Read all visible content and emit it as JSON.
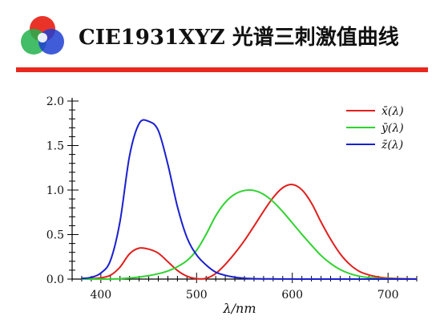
{
  "header": {
    "title": "CIE1931XYZ 光谱三刺激值曲线",
    "logo": {
      "name": "rgb-color-circles-icon",
      "colors": [
        "#e8281e",
        "#22b14c",
        "#1f3fd1"
      ]
    },
    "rule_color": "#e8281e"
  },
  "chart_data": {
    "type": "line",
    "xlabel": "λ/nm",
    "ylabel": "",
    "xlim": [
      370,
      730
    ],
    "ylim": [
      0,
      2.0
    ],
    "xticks": [
      400,
      500,
      600,
      700
    ],
    "yticks": [
      0.0,
      0.5,
      1.0,
      1.5,
      2.0
    ],
    "ytick_labels": [
      "0.0",
      "0.5",
      "1.0",
      "1.5",
      "2.0"
    ],
    "legend_position": "top-right",
    "x": [
      380,
      390,
      400,
      410,
      420,
      430,
      440,
      450,
      460,
      470,
      480,
      490,
      500,
      510,
      520,
      530,
      540,
      550,
      560,
      570,
      580,
      590,
      600,
      610,
      620,
      630,
      640,
      650,
      660,
      670,
      680,
      690,
      700,
      710,
      720,
      730
    ],
    "series": [
      {
        "name": "x̄(λ)",
        "color": "#e0201c",
        "values": [
          0.001,
          0.004,
          0.014,
          0.043,
          0.134,
          0.284,
          0.348,
          0.336,
          0.291,
          0.195,
          0.096,
          0.032,
          0.005,
          0.009,
          0.063,
          0.165,
          0.29,
          0.433,
          0.595,
          0.762,
          0.916,
          1.026,
          1.062,
          1.003,
          0.854,
          0.642,
          0.448,
          0.284,
          0.165,
          0.087,
          0.047,
          0.023,
          0.011,
          0.006,
          0.003,
          0.001
        ]
      },
      {
        "name": "ȳ(λ)",
        "color": "#2fd32f",
        "values": [
          0.0,
          0.0,
          0.0,
          0.001,
          0.004,
          0.012,
          0.023,
          0.038,
          0.06,
          0.091,
          0.139,
          0.208,
          0.323,
          0.503,
          0.71,
          0.862,
          0.954,
          0.995,
          0.995,
          0.952,
          0.87,
          0.757,
          0.631,
          0.503,
          0.381,
          0.265,
          0.175,
          0.107,
          0.061,
          0.032,
          0.017,
          0.008,
          0.004,
          0.002,
          0.001,
          0.0
        ]
      },
      {
        "name": "z̄(λ)",
        "color": "#1a1fcf",
        "values": [
          0.007,
          0.02,
          0.068,
          0.208,
          0.646,
          1.386,
          1.747,
          1.772,
          1.669,
          1.288,
          0.813,
          0.465,
          0.272,
          0.158,
          0.078,
          0.042,
          0.02,
          0.009,
          0.004,
          0.002,
          0.002,
          0.001,
          0.001,
          0.0,
          0.0,
          0.0,
          0.0,
          0.0,
          0.0,
          0.0,
          0.0,
          0.0,
          0.0,
          0.0,
          0.0,
          0.0
        ]
      }
    ]
  }
}
